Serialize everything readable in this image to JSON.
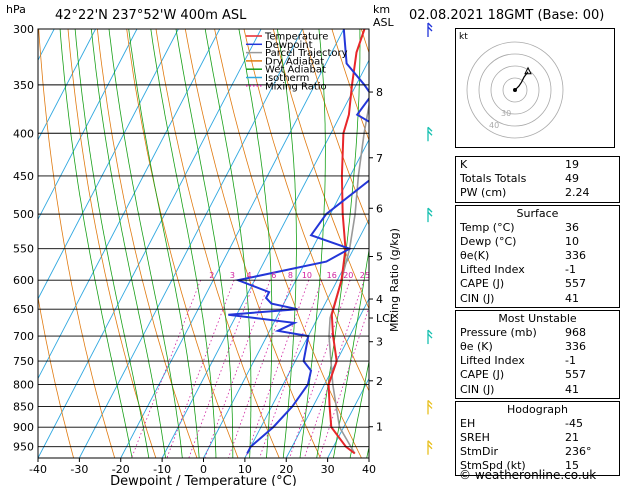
{
  "header": {
    "hpa_label": "hPa",
    "location": "42°22'N  237°52'W  400m  ASL",
    "km_label": "km",
    "asl_label": "ASL",
    "datetime": "02.08.2021  18GMT  (Base: 00)",
    "kt_label": "kt"
  },
  "legend": [
    {
      "label": "Temperature",
      "color": "#e8262a",
      "style": "solid"
    },
    {
      "label": "Dewpoint",
      "color": "#2336d8",
      "style": "solid"
    },
    {
      "label": "Parcel Trajectory",
      "color": "#999999",
      "style": "solid"
    },
    {
      "label": "Dry Adiabat",
      "color": "#e07a10",
      "style": "solid"
    },
    {
      "label": "Wet Adiabat",
      "color": "#18a018",
      "style": "solid"
    },
    {
      "label": "Isotherm",
      "color": "#30a8e0",
      "style": "solid"
    },
    {
      "label": "Mixing Ratio",
      "color": "#d020a0",
      "style": "dotted"
    }
  ],
  "chart_data": {
    "type": "line",
    "xlabel": "Dewpoint / Temperature (°C)",
    "ylabel": "Mixing Ratio (g/kg)",
    "pressure_levels": [
      300,
      350,
      400,
      450,
      500,
      550,
      600,
      650,
      700,
      750,
      800,
      850,
      900,
      950
    ],
    "x_ticks": [
      -40,
      -30,
      -20,
      -10,
      0,
      10,
      20,
      30,
      40
    ],
    "xlim": [
      -40,
      40
    ],
    "plim": [
      300,
      980
    ],
    "km_ticks": [
      {
        "label": "8",
        "p": 357
      },
      {
        "label": "7",
        "p": 428
      },
      {
        "label": "6",
        "p": 492
      },
      {
        "label": "5",
        "p": 562
      },
      {
        "label": "4",
        "p": 632
      },
      {
        "label": "LCL",
        "p": 666
      },
      {
        "label": "3",
        "p": 711
      },
      {
        "label": "2",
        "p": 792
      },
      {
        "label": "1",
        "p": 899
      }
    ],
    "mixing_ratio_labels": [
      {
        "label": "2",
        "x": 2
      },
      {
        "label": "3",
        "x": 7
      },
      {
        "label": "4",
        "x": 11
      },
      {
        "label": "6",
        "x": 17
      },
      {
        "label": "8",
        "x": 21
      },
      {
        "label": "10",
        "x": 25
      },
      {
        "label": "16",
        "x": 31
      },
      {
        "label": "20",
        "x": 35
      },
      {
        "label": "25",
        "x": 39
      }
    ],
    "series": [
      {
        "name": "Temperature",
        "points": [
          [
            968,
            36
          ],
          [
            950,
            33
          ],
          [
            900,
            27
          ],
          [
            850,
            24
          ],
          [
            800,
            21
          ],
          [
            750,
            20
          ],
          [
            700,
            16
          ],
          [
            660,
            13
          ],
          [
            600,
            11
          ],
          [
            550,
            8
          ],
          [
            500,
            3
          ],
          [
            450,
            -2
          ],
          [
            400,
            -7
          ],
          [
            380,
            -8
          ],
          [
            350,
            -11
          ],
          [
            320,
            -14
          ],
          [
            300,
            -15
          ]
        ]
      },
      {
        "name": "Dewpoint",
        "points": [
          [
            968,
            10
          ],
          [
            950,
            10
          ],
          [
            900,
            13
          ],
          [
            850,
            15
          ],
          [
            800,
            16
          ],
          [
            770,
            15
          ],
          [
            750,
            12
          ],
          [
            700,
            10
          ],
          [
            690,
            2
          ],
          [
            675,
            5
          ],
          [
            660,
            -12
          ],
          [
            650,
            4
          ],
          [
            640,
            -3
          ],
          [
            630,
            -5
          ],
          [
            620,
            -5
          ],
          [
            600,
            -14
          ],
          [
            570,
            5
          ],
          [
            550,
            9
          ],
          [
            530,
            -2
          ],
          [
            500,
            -1
          ],
          [
            450,
            6
          ],
          [
            400,
            4
          ],
          [
            380,
            -6
          ],
          [
            360,
            -5
          ],
          [
            350,
            -8
          ],
          [
            330,
            -15
          ],
          [
            300,
            -20
          ]
        ]
      },
      {
        "name": "Parcel Trajectory",
        "points": [
          [
            968,
            36
          ],
          [
            900,
            29
          ],
          [
            800,
            22
          ],
          [
            700,
            15
          ],
          [
            666,
            13
          ],
          [
            600,
            11
          ],
          [
            550,
            9
          ],
          [
            500,
            6
          ],
          [
            450,
            2
          ],
          [
            400,
            -2
          ],
          [
            350,
            -6
          ],
          [
            300,
            -10
          ]
        ]
      }
    ],
    "wind_barbs": [
      {
        "p": 300,
        "color": "#2336d8"
      },
      {
        "p": 400,
        "color": "#18c0b0"
      },
      {
        "p": 500,
        "color": "#18c0b0"
      },
      {
        "p": 700,
        "color": "#18c0b0"
      },
      {
        "p": 850,
        "color": "#e8c020"
      },
      {
        "p": 950,
        "color": "#e8c020"
      }
    ],
    "hodograph": {
      "rings_labels": [
        "40",
        "30"
      ],
      "points": [
        [
          0,
          0
        ],
        [
          3,
          3
        ],
        [
          5,
          6
        ],
        [
          7,
          10
        ],
        [
          10,
          14
        ]
      ]
    }
  },
  "indices": {
    "top": [
      {
        "label": "K",
        "value": "19"
      },
      {
        "label": "Totals Totals",
        "value": "49"
      },
      {
        "label": "PW (cm)",
        "value": "2.24"
      }
    ],
    "surface": {
      "title": "Surface",
      "rows": [
        {
          "label": "Temp (°C)",
          "value": "36"
        },
        {
          "label": "Dewp (°C)",
          "value": "10"
        },
        {
          "label": "θe(K)",
          "value": "336"
        },
        {
          "label": "Lifted Index",
          "value": "-1"
        },
        {
          "label": "CAPE (J)",
          "value": "557"
        },
        {
          "label": "CIN (J)",
          "value": "41"
        }
      ]
    },
    "unstable": {
      "title": "Most Unstable",
      "rows": [
        {
          "label": "Pressure (mb)",
          "value": "968"
        },
        {
          "label": "θe (K)",
          "value": "336"
        },
        {
          "label": "Lifted Index",
          "value": "-1"
        },
        {
          "label": "CAPE (J)",
          "value": "557"
        },
        {
          "label": "CIN (J)",
          "value": "41"
        }
      ]
    },
    "hodograph": {
      "title": "Hodograph",
      "rows": [
        {
          "label": "EH",
          "value": "-45"
        },
        {
          "label": "SREH",
          "value": "21"
        },
        {
          "label": "StmDir",
          "value": "236°"
        },
        {
          "label": "StmSpd (kt)",
          "value": "15"
        }
      ]
    }
  },
  "credit": "© weatheronline.co.uk"
}
